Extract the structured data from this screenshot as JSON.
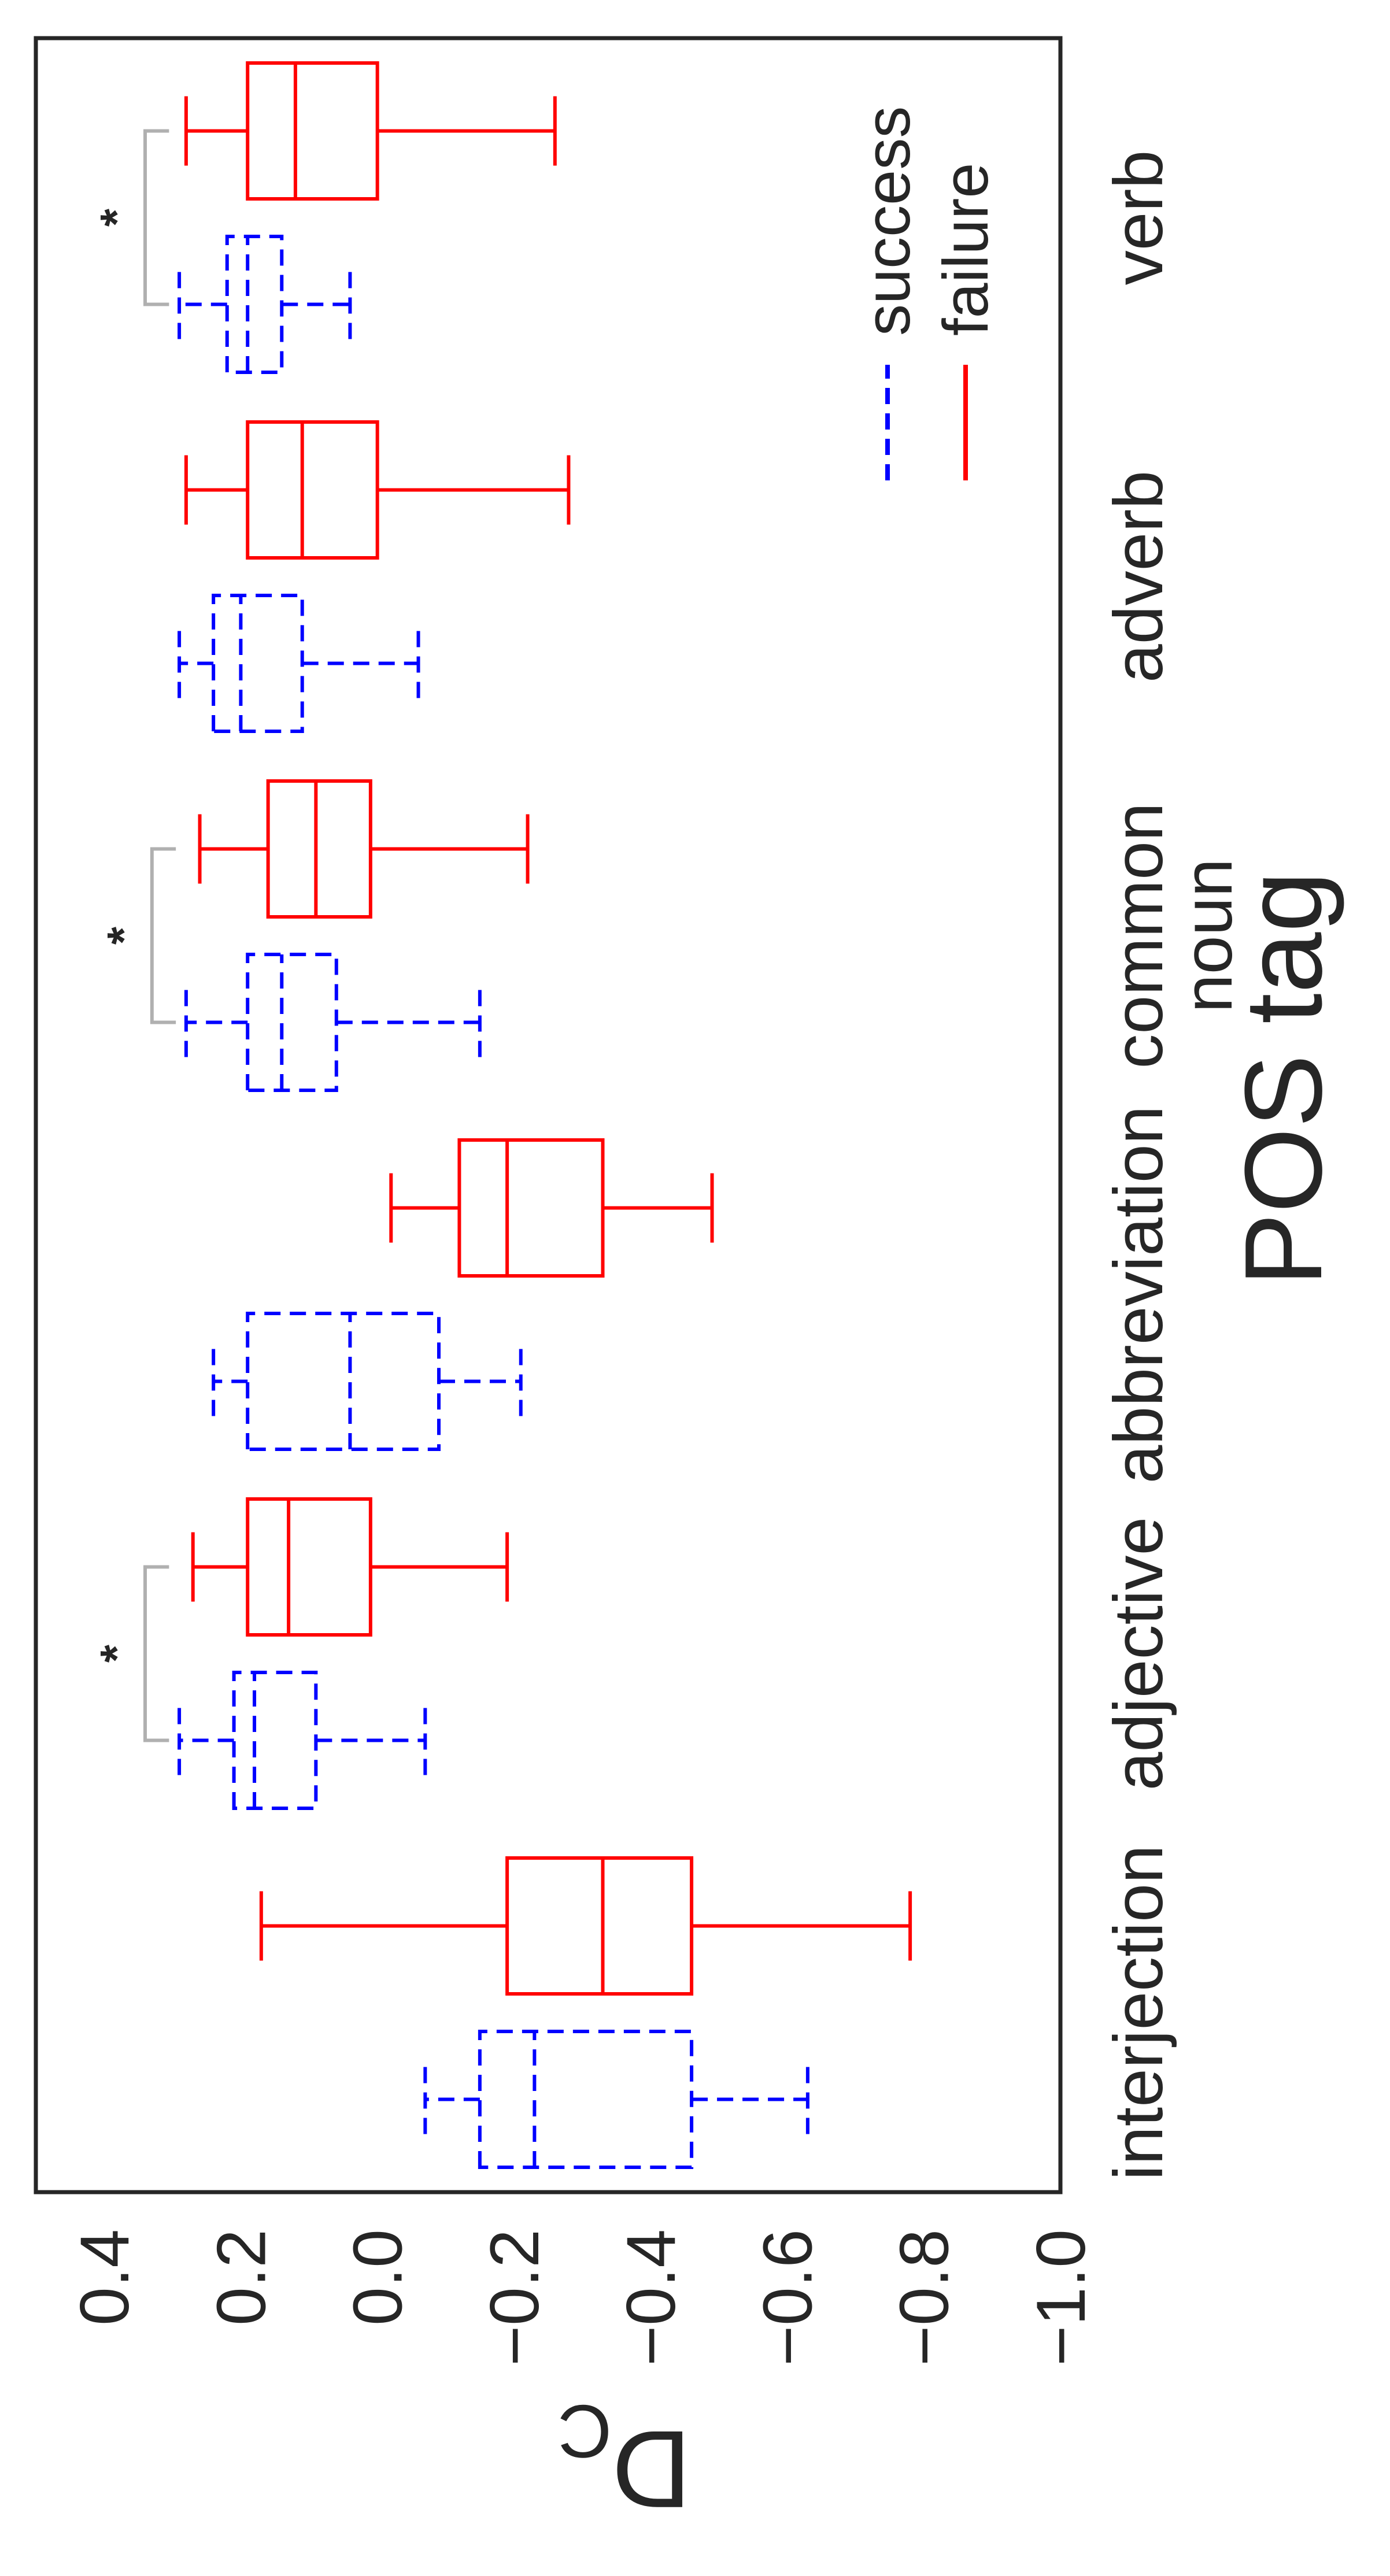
{
  "chart_data": {
    "type": "box",
    "title": "",
    "xlabel": "POS tag",
    "ylabel": "D_C",
    "ylim": [
      -1.0,
      0.5
    ],
    "yticks": [
      "0.4",
      "0.2",
      "0.0",
      "−0.2",
      "−0.4",
      "−0.6",
      "−0.8",
      "−1.0"
    ],
    "ytick_values": [
      0.4,
      0.2,
      0.0,
      -0.2,
      -0.4,
      -0.6,
      -0.8,
      -1.0
    ],
    "grid": false,
    "legend_position": "lower-right",
    "series": [
      {
        "name": "success",
        "color": "#0000ff",
        "linestyle": "dashed"
      },
      {
        "name": "failure",
        "color": "#ff0000",
        "linestyle": "solid"
      }
    ],
    "categories": [
      {
        "label_lines": [
          "interjection"
        ],
        "success": {
          "whislo": -0.63,
          "q1": -0.46,
          "med": -0.23,
          "q3": -0.15,
          "whishi": -0.07
        },
        "failure": {
          "whislo": -0.78,
          "q1": -0.46,
          "med": -0.33,
          "q3": -0.19,
          "whishi": 0.17
        },
        "significant": false
      },
      {
        "label_lines": [
          "adjective"
        ],
        "success": {
          "whislo": -0.07,
          "q1": 0.09,
          "med": 0.18,
          "q3": 0.21,
          "whishi": 0.29
        },
        "failure": {
          "whislo": -0.19,
          "q1": 0.01,
          "med": 0.13,
          "q3": 0.19,
          "whishi": 0.27
        },
        "significant": true
      },
      {
        "label_lines": [
          "abbreviation"
        ],
        "success": {
          "whislo": -0.21,
          "q1": -0.09,
          "med": 0.04,
          "q3": 0.19,
          "whishi": 0.24
        },
        "failure": {
          "whislo": -0.49,
          "q1": -0.33,
          "med": -0.19,
          "q3": -0.12,
          "whishi": -0.02
        },
        "significant": false
      },
      {
        "label_lines": [
          "common",
          "noun"
        ],
        "success": {
          "whislo": -0.15,
          "q1": 0.06,
          "med": 0.14,
          "q3": 0.19,
          "whishi": 0.28
        },
        "failure": {
          "whislo": -0.22,
          "q1": 0.01,
          "med": 0.09,
          "q3": 0.16,
          "whishi": 0.26
        },
        "significant": true
      },
      {
        "label_lines": [
          "adverb"
        ],
        "success": {
          "whislo": -0.06,
          "q1": 0.11,
          "med": 0.2,
          "q3": 0.24,
          "whishi": 0.29
        },
        "failure": {
          "whislo": -0.28,
          "q1": 0.0,
          "med": 0.11,
          "q3": 0.19,
          "whishi": 0.28
        },
        "significant": false
      },
      {
        "label_lines": [
          "verb"
        ],
        "success": {
          "whislo": 0.04,
          "q1": 0.14,
          "med": 0.19,
          "q3": 0.22,
          "whishi": 0.29
        },
        "failure": {
          "whislo": -0.26,
          "q1": 0.0,
          "med": 0.12,
          "q3": 0.19,
          "whishi": 0.28
        },
        "significant": true
      }
    ],
    "significance_marker": "*"
  }
}
